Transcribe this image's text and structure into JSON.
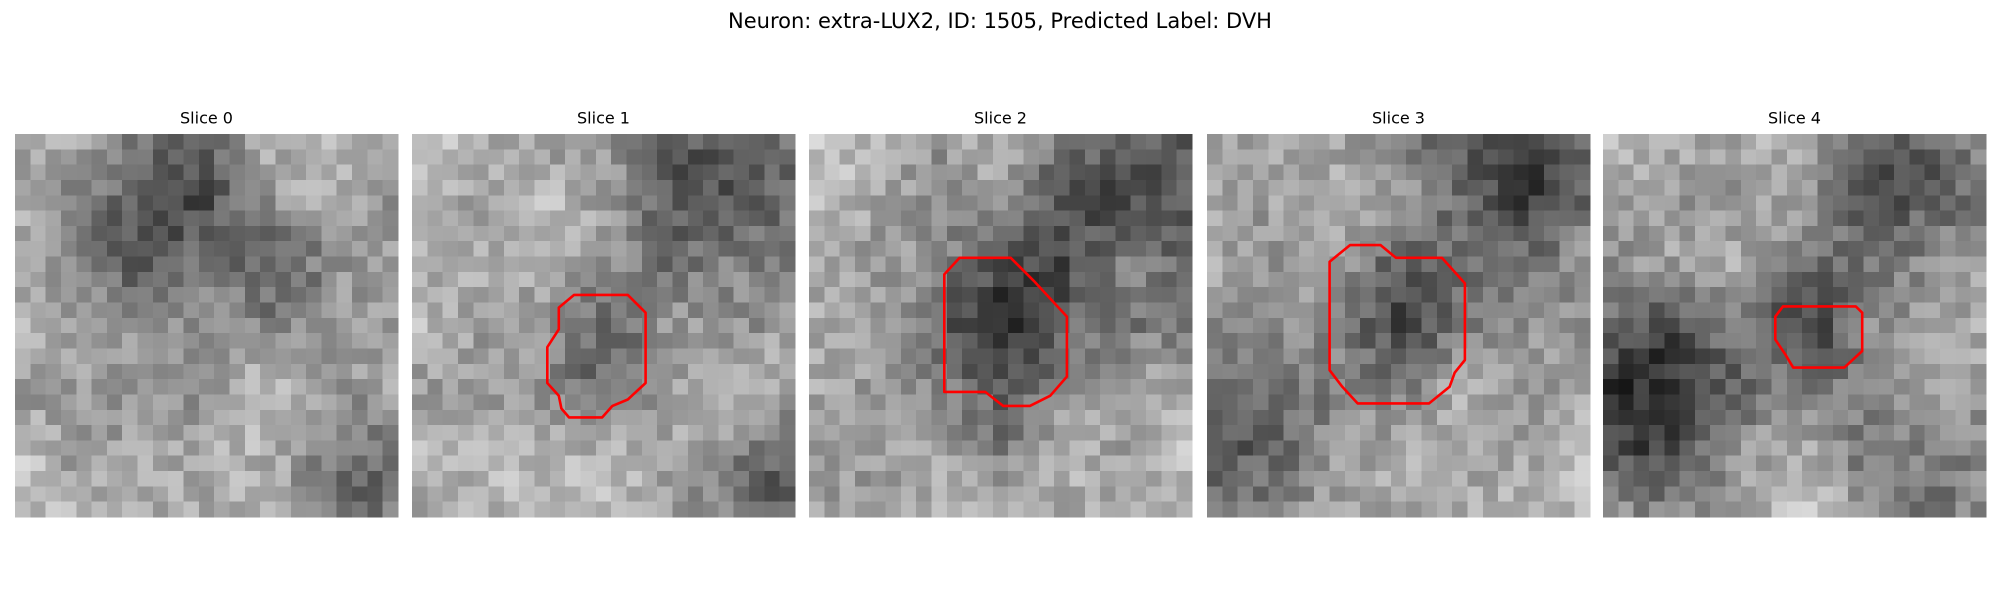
{
  "title": "Neuron: extra-LUX2, ID: 1505, Predicted Label: DVH",
  "panels": [
    {
      "title": "Slice 0"
    },
    {
      "title": "Slice 1"
    },
    {
      "title": "Slice 2"
    },
    {
      "title": "Slice 3"
    },
    {
      "title": "Slice 4"
    }
  ]
}
